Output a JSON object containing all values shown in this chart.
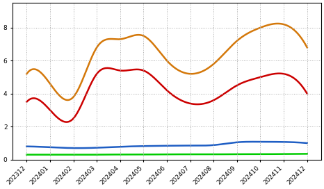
{
  "x_labels": [
    "202312",
    "202401",
    "202402",
    "202403",
    "202404",
    "202405",
    "202406",
    "202407",
    "202408",
    "202409",
    "202410",
    "202411",
    "202412"
  ],
  "series": {
    "orange": [
      5.2,
      4.6,
      3.8,
      6.8,
      7.3,
      7.5,
      6.0,
      5.2,
      5.8,
      7.2,
      8.0,
      8.2,
      6.8
    ],
    "red": [
      3.5,
      3.0,
      2.5,
      5.2,
      5.4,
      5.4,
      4.2,
      3.4,
      3.6,
      4.5,
      5.0,
      5.2,
      4.0
    ],
    "blue": [
      0.8,
      0.75,
      0.7,
      0.72,
      0.78,
      0.82,
      0.84,
      0.85,
      0.88,
      1.05,
      1.08,
      1.07,
      1.0
    ],
    "green": [
      0.3,
      0.3,
      0.3,
      0.3,
      0.31,
      0.31,
      0.32,
      0.32,
      0.32,
      0.33,
      0.33,
      0.34,
      0.35
    ]
  },
  "colors": {
    "orange": "#D4780A",
    "red": "#CC0000",
    "blue": "#1F5EC4",
    "green": "#00CC00"
  },
  "line_width": 1.8,
  "background_color": "#ffffff",
  "grid_color": "#aaaaaa",
  "ylim": [
    0,
    9.5
  ],
  "figsize": [
    4.66,
    2.72
  ],
  "dpi": 100
}
